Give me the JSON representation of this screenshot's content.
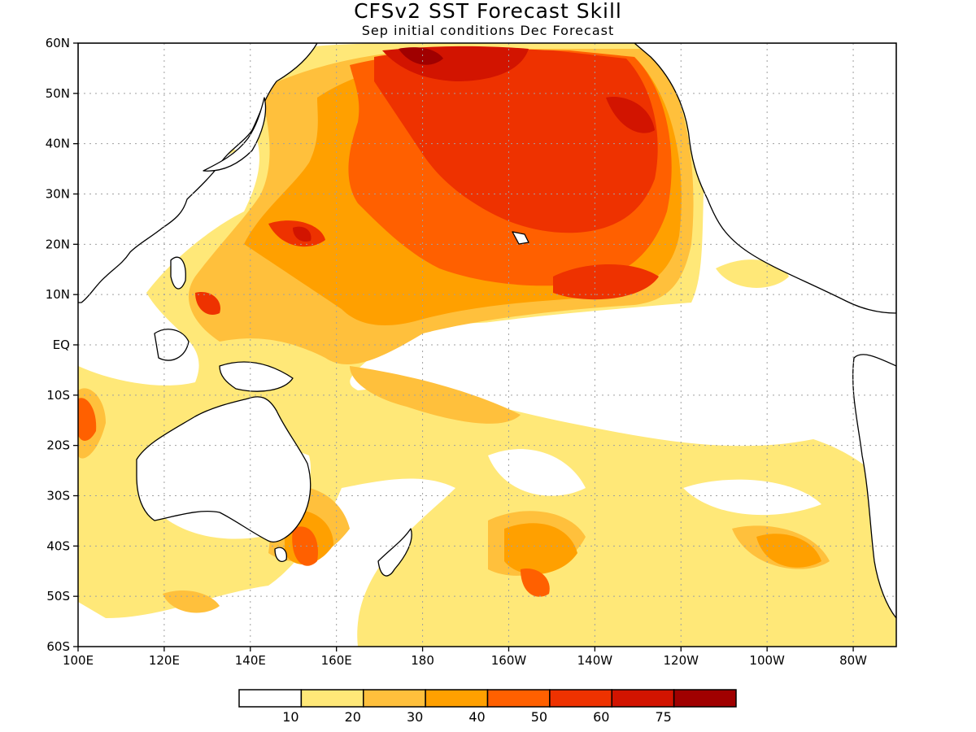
{
  "title": "CFSv2  SST Forecast Skill",
  "subtitle": "Sep initial conditions  Dec Forecast",
  "lat_labels": [
    "60N",
    "50N",
    "40N",
    "30N",
    "20N",
    "10N",
    "EQ",
    "10S",
    "20S",
    "30S",
    "40S",
    "50S",
    "60S"
  ],
  "lon_labels": [
    "100E",
    "120E",
    "140E",
    "160E",
    "180",
    "160W",
    "140W",
    "120W",
    "100W",
    "80W"
  ],
  "colorbar": {
    "levels": [
      "10",
      "20",
      "30",
      "40",
      "50",
      "60",
      "75"
    ],
    "colors": [
      "#ffffff",
      "#ffe878",
      "#ffc03c",
      "#ffa000",
      "#ff6000",
      "#ee3200",
      "#d21400",
      "#a00000"
    ]
  },
  "colors": {
    "land_outline": "#000000",
    "grid": "#a0a0a0",
    "frame": "#000000"
  },
  "legend_position": "bottom-center"
}
